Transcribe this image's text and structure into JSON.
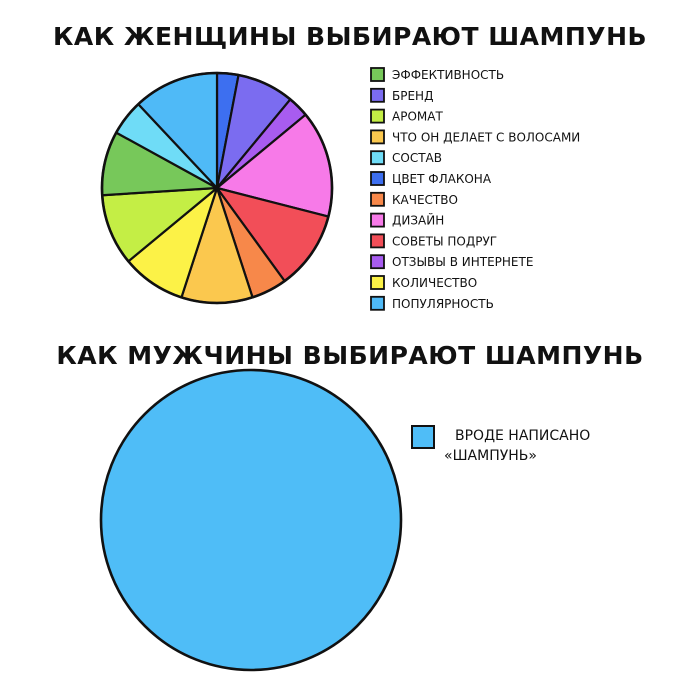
{
  "chart_data": [
    {
      "type": "pie",
      "title": "КАК ЖЕНЩИНЫ ВЫБИРАЮТ ШАМПУНЬ",
      "legend_position": "right",
      "slices": [
        {
          "label": "ЭФФЕКТИВНОСТЬ",
          "value": 9,
          "color": "#77c85a"
        },
        {
          "label": "БРЕНД",
          "value": 8,
          "color": "#7b6cf0"
        },
        {
          "label": "АРОМАТ",
          "value": 10,
          "color": "#c4ee45"
        },
        {
          "label": "ЧТО ОН ДЕЛАЕТ С ВОЛОСАМИ",
          "value": 10,
          "color": "#fbc84e"
        },
        {
          "label": "СОСТАВ",
          "value": 5,
          "color": "#6fdcf7"
        },
        {
          "label": "ЦВЕТ ФЛАКОНА",
          "value": 3,
          "color": "#3d6ff0"
        },
        {
          "label": "КАЧЕСТВО",
          "value": 5,
          "color": "#f7884a"
        },
        {
          "label": "ДИЗАЙН",
          "value": 15,
          "color": "#f77ae8"
        },
        {
          "label": "СОВЕТЫ ПОДРУГ",
          "value": 11,
          "color": "#f24e58"
        },
        {
          "label": "ОТЗЫВЫ В ИНТЕРНЕТЕ",
          "value": 3,
          "color": "#a85cf0"
        },
        {
          "label": "КОЛИЧЕСТВО",
          "value": 9,
          "color": "#fcf247"
        },
        {
          "label": "ПОПУЛЯРНОСТЬ",
          "value": 12,
          "color": "#4fbaf7"
        }
      ]
    },
    {
      "type": "pie",
      "title": "КАК МУЖЧИНЫ ВЫБИРАЮТ ШАМПУНЬ",
      "legend_position": "right",
      "slices": [
        {
          "label": "ВРОДЕ НАПИСАНО «ШАМПУНЬ»",
          "value": 100,
          "color": "#4fbdf7",
          "label_lines": [
            "ВРОДЕ НАПИСАНО",
            "«ШАМПУНЬ»"
          ]
        }
      ]
    }
  ]
}
